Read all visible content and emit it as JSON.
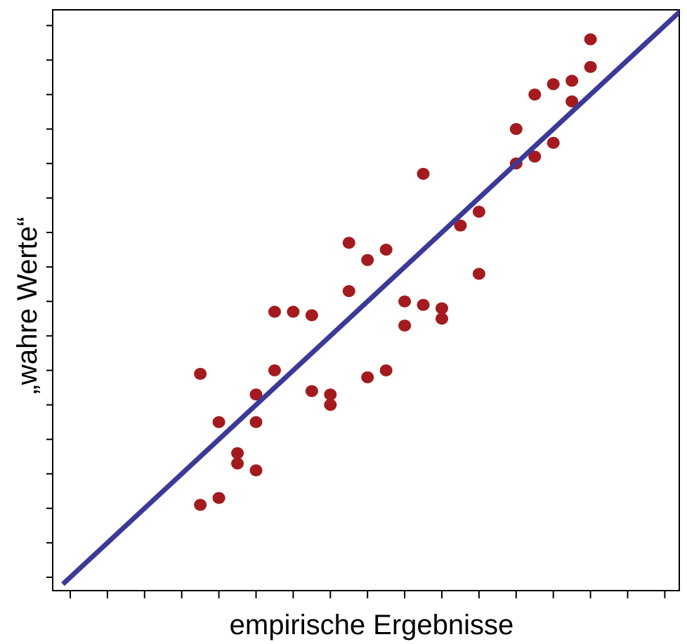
{
  "chart_data": {
    "type": "scatter",
    "title": "",
    "xlabel": "empirische Ergebnisse",
    "ylabel": "„wahre Werte“",
    "xlim": [
      0,
      16.5
    ],
    "ylim": [
      0,
      16.5
    ],
    "x_ticks": [
      0,
      1,
      2,
      3,
      4,
      5,
      6,
      7,
      8,
      9,
      10,
      11,
      12,
      13,
      14,
      15,
      16
    ],
    "y_ticks": [
      0,
      1,
      2,
      3,
      4,
      5,
      6,
      7,
      8,
      9,
      10,
      11,
      12,
      13,
      14,
      15,
      16
    ],
    "tick_labels_shown": false,
    "grid": false,
    "legend": "none",
    "series": [
      {
        "type": "scatter",
        "color": "#a31b1e",
        "x": [
          3.5,
          3.5,
          4,
          4,
          4.5,
          4.5,
          5,
          5,
          5,
          5.5,
          5.5,
          6,
          6.5,
          6.5,
          7,
          7,
          7.5,
          7.5,
          8,
          8,
          8.5,
          8.5,
          9,
          9,
          9.5,
          9.5,
          10,
          10,
          10.5,
          11,
          11,
          12,
          12,
          12.5,
          12.5,
          13,
          13,
          13.5,
          13.5,
          14,
          14
        ],
        "y": [
          2.1,
          5.9,
          2.3,
          4.5,
          3.3,
          3.6,
          4.5,
          5.3,
          3.1,
          6.0,
          7.7,
          7.7,
          5.4,
          7.6,
          5.3,
          5.0,
          8.3,
          9.7,
          9.2,
          5.8,
          9.5,
          6.0,
          8.0,
          7.3,
          11.7,
          7.9,
          7.8,
          7.5,
          10.2,
          10.6,
          8.8,
          12.0,
          13.0,
          12.2,
          14.0,
          12.6,
          14.3,
          13.8,
          14.4,
          15.6,
          14.8
        ]
      },
      {
        "type": "line",
        "color": "#3b3a96",
        "x": [
          -0.2,
          16.7
        ],
        "y": [
          -0.2,
          16.7
        ]
      }
    ]
  }
}
